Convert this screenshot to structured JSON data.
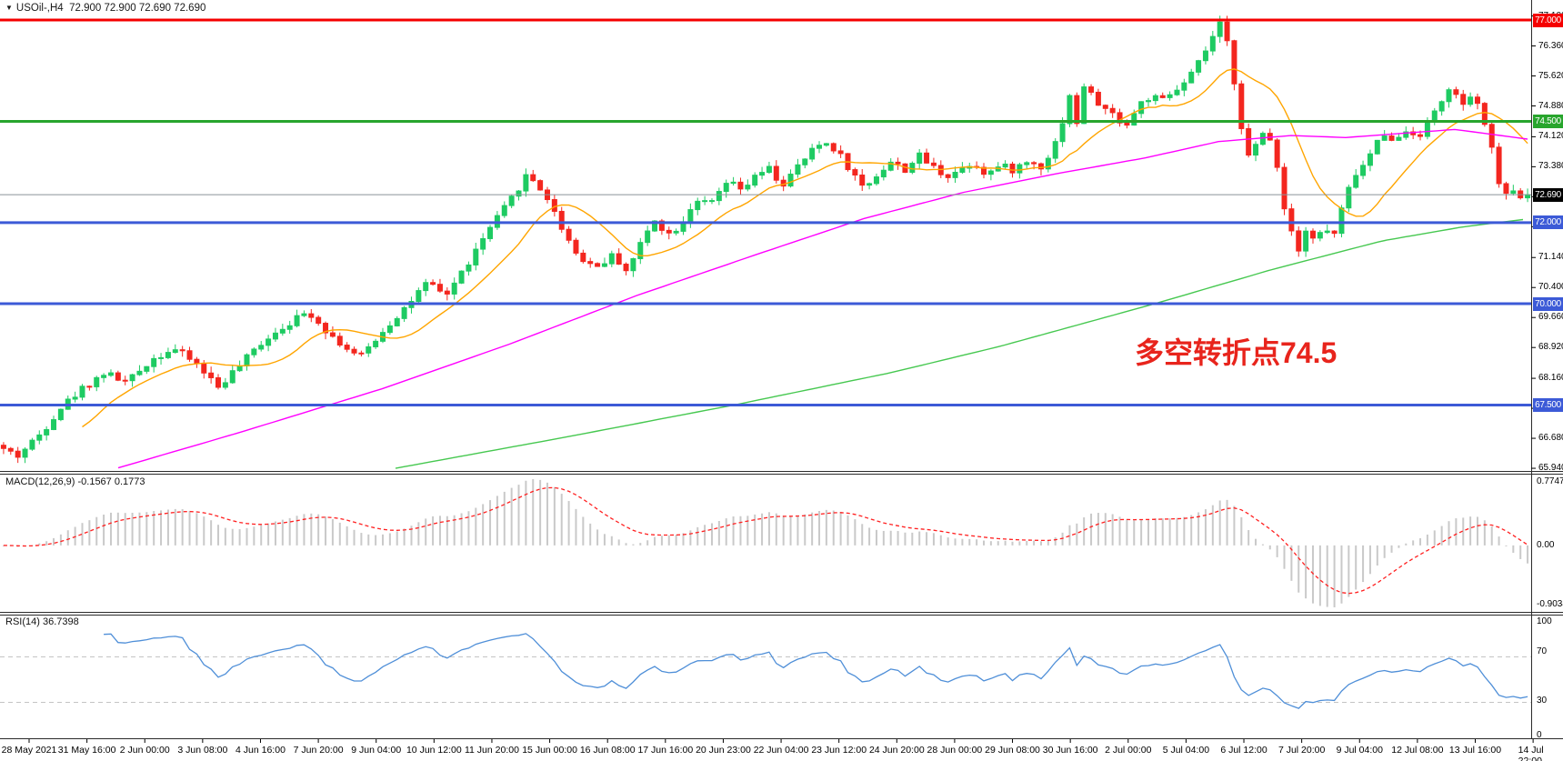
{
  "window": {
    "dropdown_icon": "▼",
    "symbol": "USOil-,H4",
    "ohlc": "72.900 72.900 72.690 72.690"
  },
  "annotation": {
    "text": "多空转折点74.5",
    "color": "#e8241c"
  },
  "price_axis": {
    "ticks": [
      {
        "label": "77.100",
        "price": 77.1
      },
      {
        "label": "76.360",
        "price": 76.36
      },
      {
        "label": "75.620",
        "price": 75.62
      },
      {
        "label": "74.880",
        "price": 74.88
      },
      {
        "label": "74.120",
        "price": 74.12
      },
      {
        "label": "73.380",
        "price": 73.38
      },
      {
        "label": "72.640",
        "price": 72.64
      },
      {
        "label": "71.900",
        "price": 71.9
      },
      {
        "label": "71.140",
        "price": 71.14
      },
      {
        "label": "70.400",
        "price": 70.4
      },
      {
        "label": "69.660",
        "price": 69.66
      },
      {
        "label": "68.920",
        "price": 68.92
      },
      {
        "label": "68.160",
        "price": 68.16
      },
      {
        "label": "67.420",
        "price": 67.42
      },
      {
        "label": "66.680",
        "price": 66.68
      },
      {
        "label": "65.940",
        "price": 65.94
      }
    ]
  },
  "hlines": [
    {
      "price": 77.0,
      "label": "77.000",
      "color": "#f50000",
      "width": 3,
      "badge": "#f50000"
    },
    {
      "price": 74.5,
      "label": "74.500",
      "color": "#28a52d",
      "width": 3,
      "badge": "#28a52d"
    },
    {
      "price": 72.69,
      "label": "72.690",
      "color": "#8a9299",
      "width": 1,
      "badge": "#000000",
      "current": true
    },
    {
      "price": 72.0,
      "label": "72.000",
      "color": "#3c5ad7",
      "width": 3,
      "badge": "#3c5ad7"
    },
    {
      "price": 70.0,
      "label": "70.000",
      "color": "#3c5ad7",
      "width": 3,
      "badge": "#3c5ad7"
    },
    {
      "price": 67.5,
      "label": "67.500",
      "color": "#3c5ad7",
      "width": 3,
      "badge": "#3c5ad7"
    }
  ],
  "indicators": {
    "macd": {
      "name": "MACD(12,26,9)",
      "value": "-0.1567",
      "signal_value": "0.1773",
      "axis_max": "0.7747",
      "axis_zero": "0.00",
      "axis_min": "-0.9034",
      "histogram_color": "#c9c9c9",
      "signal_color": "#ff2020"
    },
    "rsi": {
      "name": "RSI(14)",
      "value": "36.7398",
      "axis": [
        "100",
        "70",
        "30",
        "0"
      ],
      "levels": [
        70,
        30
      ],
      "line_color": "#4f8fd8"
    }
  },
  "time_axis": {
    "labels": [
      "28 May 2021",
      "31 May 16:00",
      "2 Jun 00:00",
      "3 Jun 08:00",
      "4 Jun 16:00",
      "7 Jun 20:00",
      "9 Jun 04:00",
      "10 Jun 12:00",
      "11 Jun 20:00",
      "15 Jun 00:00",
      "16 Jun 08:00",
      "17 Jun 16:00",
      "20 Jun 23:00",
      "22 Jun 04:00",
      "23 Jun 12:00",
      "24 Jun 20:00",
      "28 Jun 00:00",
      "29 Jun 08:00",
      "30 Jun 16:00",
      "2 Jul 00:00",
      "5 Jul 04:00",
      "6 Jul 12:00",
      "7 Jul 20:00",
      "9 Jul 04:00",
      "12 Jul 08:00",
      "13 Jul 16:00",
      "14 Jul 22:00"
    ]
  },
  "chart_data": {
    "type": "candlestick",
    "symbol": "USOil",
    "timeframe": "H4",
    "title": "USOil-,H4 72.900 72.900 72.690 72.690",
    "price_range": [
      65.94,
      77.1
    ],
    "candle_count": 214,
    "up_color": "#1ecb62",
    "down_color": "#f3261f",
    "last_candle": {
      "open": 72.9,
      "high": 72.9,
      "low": 72.69,
      "close": 72.69
    },
    "price_path_waypoints": [
      [
        0,
        66.45
      ],
      [
        20,
        66.25
      ],
      [
        45,
        66.8
      ],
      [
        65,
        67.4
      ],
      [
        90,
        67.9
      ],
      [
        115,
        68.3
      ],
      [
        140,
        68.05
      ],
      [
        165,
        68.6
      ],
      [
        190,
        68.9
      ],
      [
        215,
        68.55
      ],
      [
        240,
        67.95
      ],
      [
        265,
        68.5
      ],
      [
        290,
        69.1
      ],
      [
        315,
        69.5
      ],
      [
        340,
        69.8
      ],
      [
        365,
        69.2
      ],
      [
        395,
        68.65
      ],
      [
        420,
        69.3
      ],
      [
        445,
        69.9
      ],
      [
        470,
        70.5
      ],
      [
        490,
        70.2
      ],
      [
        515,
        71.0
      ],
      [
        540,
        71.9
      ],
      [
        560,
        72.5
      ],
      [
        580,
        73.2
      ],
      [
        600,
        72.7
      ],
      [
        615,
        72.0
      ],
      [
        635,
        71.2
      ],
      [
        655,
        70.9
      ],
      [
        675,
        71.2
      ],
      [
        690,
        70.8
      ],
      [
        705,
        71.5
      ],
      [
        720,
        72.1
      ],
      [
        735,
        71.7
      ],
      [
        750,
        72.0
      ],
      [
        765,
        72.6
      ],
      [
        780,
        72.4
      ],
      [
        800,
        73.0
      ],
      [
        815,
        72.8
      ],
      [
        830,
        73.1
      ],
      [
        845,
        73.35
      ],
      [
        860,
        72.9
      ],
      [
        875,
        73.3
      ],
      [
        890,
        73.7
      ],
      [
        905,
        74.0
      ],
      [
        920,
        73.8
      ],
      [
        935,
        73.3
      ],
      [
        950,
        72.85
      ],
      [
        965,
        73.2
      ],
      [
        980,
        73.5
      ],
      [
        995,
        73.3
      ],
      [
        1010,
        73.65
      ],
      [
        1025,
        73.4
      ],
      [
        1040,
        73.15
      ],
      [
        1055,
        73.3
      ],
      [
        1070,
        73.5
      ],
      [
        1085,
        73.2
      ],
      [
        1100,
        73.4
      ],
      [
        1115,
        73.3
      ],
      [
        1130,
        73.5
      ],
      [
        1145,
        73.4
      ],
      [
        1158,
        73.8
      ],
      [
        1170,
        74.6
      ],
      [
        1178,
        75.3
      ],
      [
        1185,
        74.3
      ],
      [
        1192,
        75.4
      ],
      [
        1205,
        75.0
      ],
      [
        1215,
        74.8
      ],
      [
        1228,
        74.6
      ],
      [
        1240,
        74.4
      ],
      [
        1252,
        74.9
      ],
      [
        1265,
        75.1
      ],
      [
        1278,
        75.0
      ],
      [
        1290,
        75.2
      ],
      [
        1302,
        75.4
      ],
      [
        1315,
        75.8
      ],
      [
        1330,
        76.4
      ],
      [
        1341,
        76.9
      ],
      [
        1352,
        76.3
      ],
      [
        1362,
        74.8
      ],
      [
        1372,
        73.6
      ],
      [
        1382,
        73.9
      ],
      [
        1392,
        74.3
      ],
      [
        1402,
        73.8
      ],
      [
        1412,
        72.4
      ],
      [
        1422,
        71.7
      ],
      [
        1430,
        71.3
      ],
      [
        1438,
        72.0
      ],
      [
        1446,
        71.5
      ],
      [
        1456,
        71.9
      ],
      [
        1466,
        71.6
      ],
      [
        1478,
        72.5
      ],
      [
        1490,
        73.2
      ],
      [
        1500,
        73.4
      ],
      [
        1512,
        73.9
      ],
      [
        1524,
        74.25
      ],
      [
        1536,
        74.0
      ],
      [
        1548,
        74.3
      ],
      [
        1560,
        74.15
      ],
      [
        1572,
        74.5
      ],
      [
        1584,
        75.0
      ],
      [
        1596,
        75.3
      ],
      [
        1606,
        74.9
      ],
      [
        1616,
        75.05
      ],
      [
        1626,
        74.85
      ],
      [
        1636,
        74.3
      ],
      [
        1645,
        73.3
      ],
      [
        1655,
        72.6
      ],
      [
        1665,
        72.85
      ],
      [
        1674,
        72.55
      ],
      [
        1684,
        72.69
      ]
    ],
    "ma_fast": {
      "color": "#ffa500",
      "period": 12,
      "style": "solid"
    },
    "ma_mid": {
      "color": "#ff00ff",
      "points": [
        [
          130,
          65.95
        ],
        [
          260,
          66.8
        ],
        [
          420,
          67.9
        ],
        [
          560,
          69.0
        ],
        [
          700,
          70.2
        ],
        [
          830,
          71.2
        ],
        [
          950,
          72.1
        ],
        [
          1060,
          72.75
        ],
        [
          1160,
          73.2
        ],
        [
          1260,
          73.6
        ],
        [
          1340,
          74.0
        ],
        [
          1420,
          74.15
        ],
        [
          1480,
          74.1
        ],
        [
          1540,
          74.2
        ],
        [
          1600,
          74.3
        ],
        [
          1684,
          74.05
        ]
      ]
    },
    "ma_slow": {
      "color": "#46c850",
      "points": [
        [
          435,
          65.94
        ],
        [
          620,
          66.7
        ],
        [
          807,
          67.5
        ],
        [
          980,
          68.3
        ],
        [
          1100,
          68.95
        ],
        [
          1270,
          70.0
        ],
        [
          1400,
          70.85
        ],
        [
          1520,
          71.55
        ],
        [
          1610,
          71.9
        ],
        [
          1684,
          72.1
        ]
      ]
    }
  }
}
